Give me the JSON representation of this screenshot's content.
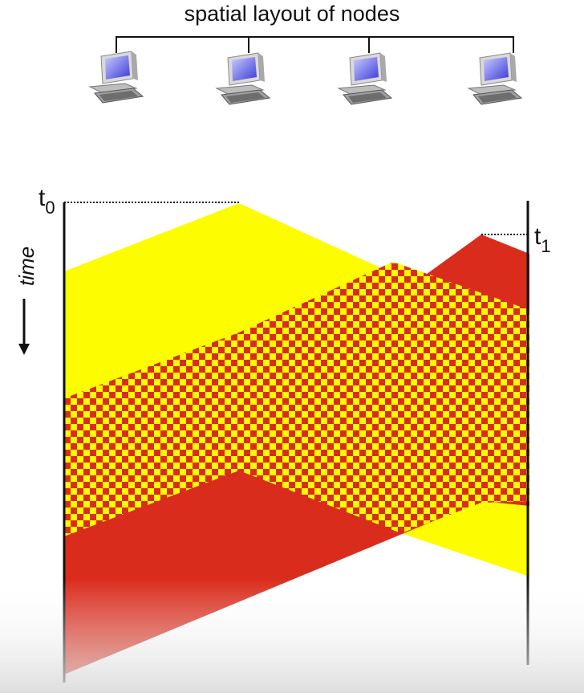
{
  "title": "spatial layout of nodes",
  "nodes": [
    {
      "icon": "computer-icon"
    },
    {
      "icon": "computer-icon"
    },
    {
      "icon": "computer-icon"
    },
    {
      "icon": "computer-icon"
    }
  ],
  "time_axis": {
    "label": "time",
    "t0": {
      "base": "t",
      "sub": "0"
    },
    "t1": {
      "base": "t",
      "sub": "1"
    }
  },
  "colors": {
    "yellow": "#fefc00",
    "red": "#d92c1c",
    "line": "#111111"
  }
}
